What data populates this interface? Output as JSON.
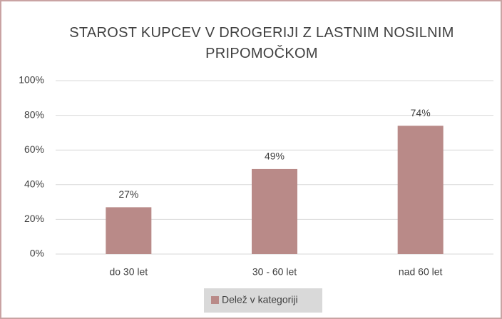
{
  "chart_data": {
    "type": "bar",
    "title": "STAROST KUPCEV V DROGERIJI Z LASTNIM NOSILNIM PRIPOMOČKOM",
    "categories": [
      "do 30 let",
      "30 - 60 let",
      "nad 60 let"
    ],
    "series": [
      {
        "name": "Delež v kategoriji",
        "color": "#b98a88",
        "values": [
          27,
          49,
          74
        ],
        "value_labels": [
          "27%",
          "49%",
          "74%"
        ]
      }
    ],
    "ylim": [
      0,
      100
    ],
    "yticks": [
      {
        "value": 0,
        "label": "0%"
      },
      {
        "value": 20,
        "label": "20%"
      },
      {
        "value": 40,
        "label": "40%"
      },
      {
        "value": 60,
        "label": "60%"
      },
      {
        "value": 80,
        "label": "80%"
      },
      {
        "value": 100,
        "label": "100%"
      }
    ],
    "grid": true,
    "legend": "bottom"
  }
}
